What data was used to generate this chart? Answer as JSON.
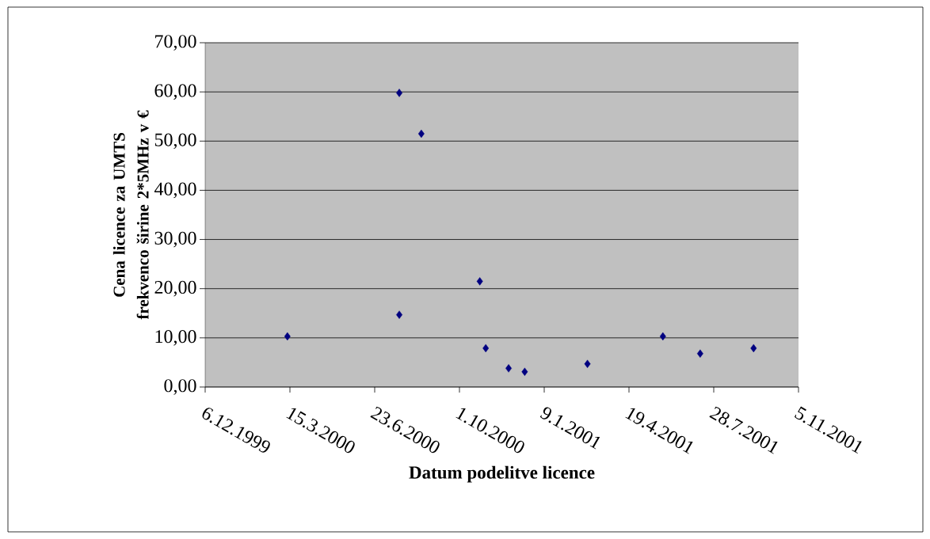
{
  "chart_data": {
    "type": "scatter",
    "xlabel": "Datum podelitve licence",
    "ylabel": "Cena licence za UMTS frekvenco širine 2*5MHz v €",
    "x": [
      "2000-03-12",
      "2000-07-22",
      "2000-07-22",
      "2000-08-17",
      "2000-10-25",
      "2000-11-01",
      "2000-11-28",
      "2000-12-17",
      "2001-03-01",
      "2001-05-29",
      "2001-07-12",
      "2001-09-13"
    ],
    "series": [
      {
        "color": "#000080",
        "values": [
          10.3,
          14.7,
          59.8,
          51.5,
          21.5,
          7.9,
          3.8,
          3.1,
          4.7,
          10.3,
          6.8,
          7.9
        ]
      }
    ],
    "marker": "diamond",
    "grid": "y",
    "xlim": [
      "1999-12-06",
      "2001-11-05"
    ],
    "xticks": [
      {
        "value": "1999-12-06",
        "label": "6.12.1999"
      },
      {
        "value": "2000-03-15",
        "label": "15.3.2000"
      },
      {
        "value": "2000-06-23",
        "label": "23.6.2000"
      },
      {
        "value": "2000-10-01",
        "label": "1.10.2000"
      },
      {
        "value": "2001-01-09",
        "label": "9.1.2001"
      },
      {
        "value": "2001-04-19",
        "label": "19.4.2001"
      },
      {
        "value": "2001-07-28",
        "label": "28.7.2001"
      },
      {
        "value": "2001-11-05",
        "label": "5.11.2001"
      }
    ],
    "ylim": [
      0,
      70
    ],
    "yticks": [
      {
        "value": 0,
        "label": "0,00"
      },
      {
        "value": 10,
        "label": "10,00"
      },
      {
        "value": 20,
        "label": "20,00"
      },
      {
        "value": 30,
        "label": "30,00"
      },
      {
        "value": 40,
        "label": "40,00"
      },
      {
        "value": 50,
        "label": "50,00"
      },
      {
        "value": 60,
        "label": "60,00"
      },
      {
        "value": 70,
        "label": "70,00"
      }
    ]
  }
}
